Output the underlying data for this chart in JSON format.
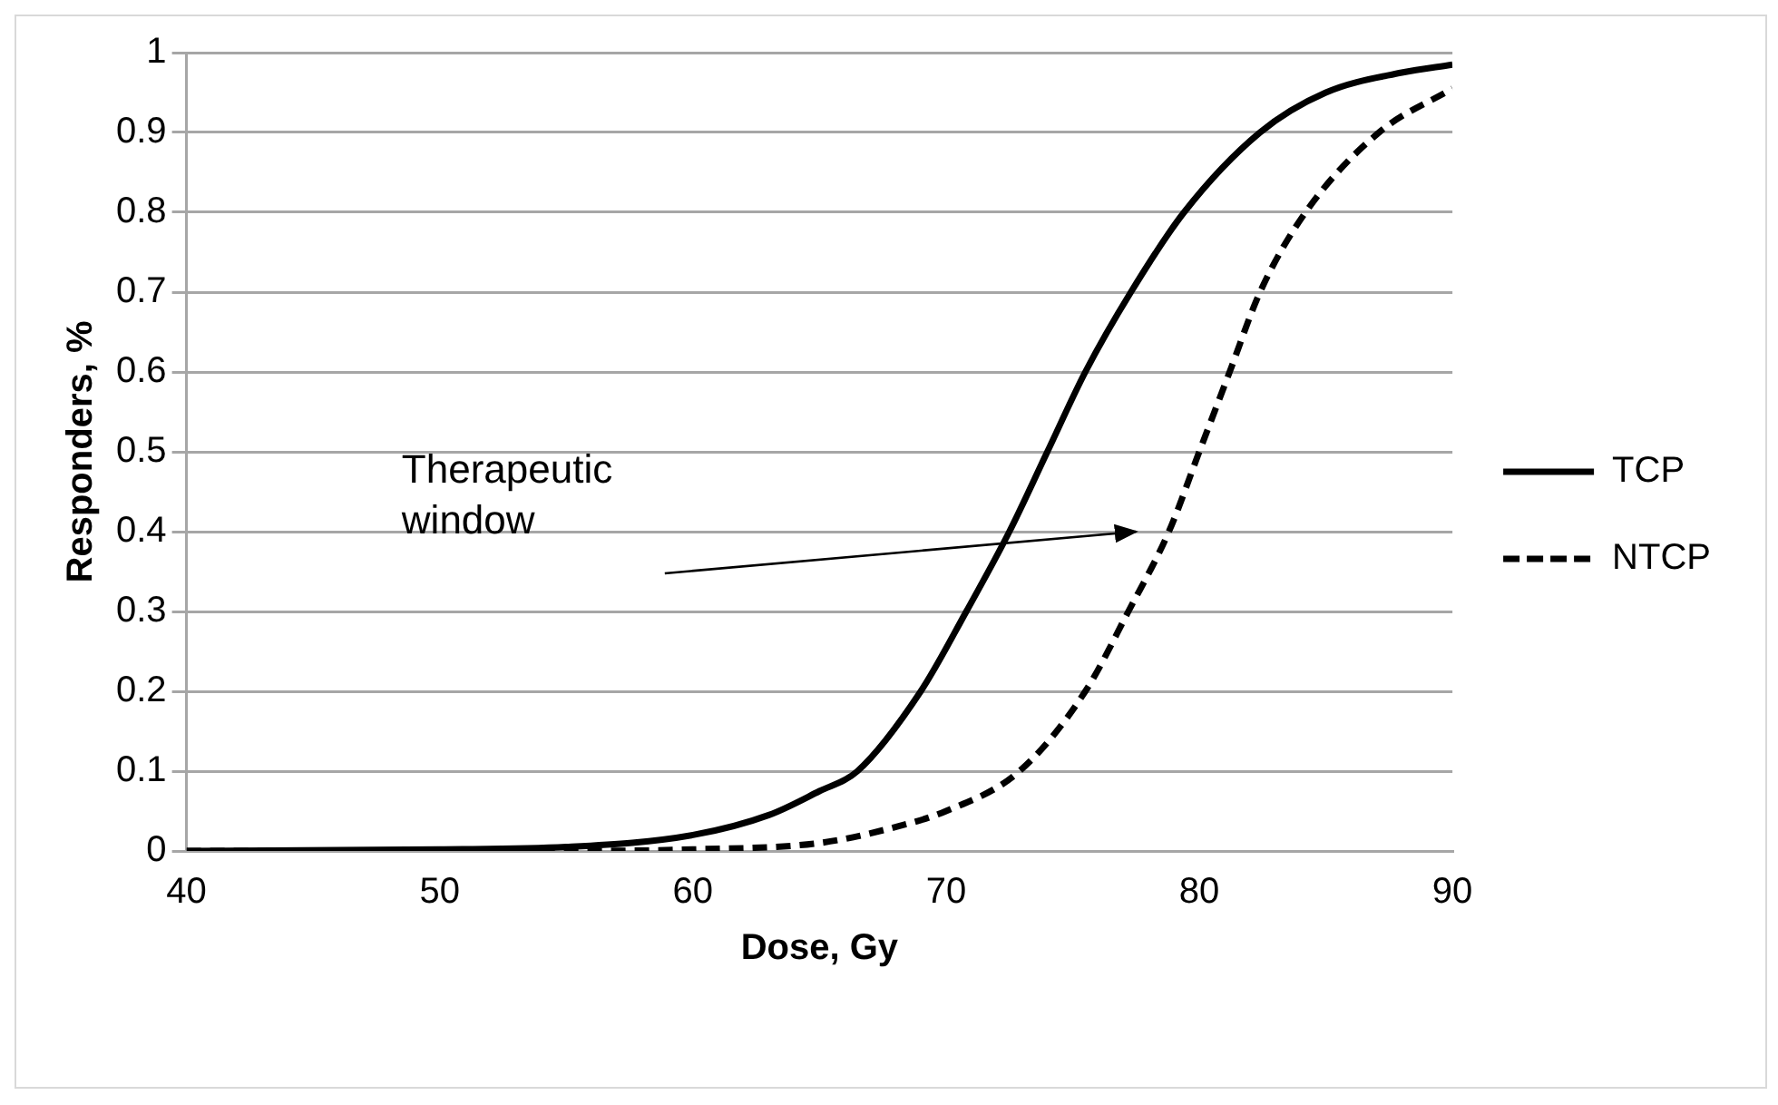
{
  "chart_data": {
    "type": "line",
    "xlabel": "Dose, Gy",
    "ylabel": "Responders, %",
    "series": [
      {
        "name": "TCP",
        "color": "#000000",
        "line_style": "solid",
        "x": [
          40,
          50,
          55,
          60,
          63,
          65,
          66.5,
          69,
          70.8,
          72.5,
          74,
          75.5,
          77.3,
          79.4,
          82.4,
          85,
          88,
          90
        ],
        "values": [
          0,
          0.002,
          0.005,
          0.02,
          0.045,
          0.075,
          0.1,
          0.2,
          0.3,
          0.4,
          0.5,
          0.6,
          0.7,
          0.8,
          0.9,
          0.95,
          0.975,
          0.985
        ]
      },
      {
        "name": "NTCP",
        "color": "#000000",
        "line_style": "dashed",
        "x": [
          40,
          55,
          60,
          65,
          68,
          70,
          72.9,
          75.5,
          77.2,
          78.8,
          80,
          81.2,
          82.4,
          84.2,
          87.1,
          90
        ],
        "values": [
          0,
          0,
          0.002,
          0.01,
          0.03,
          0.05,
          0.1,
          0.2,
          0.3,
          0.4,
          0.5,
          0.6,
          0.7,
          0.8,
          0.9,
          0.955
        ]
      }
    ],
    "xlim": [
      40,
      90
    ],
    "xticks": [
      40,
      50,
      60,
      70,
      80,
      90
    ],
    "ylim": [
      0,
      1
    ],
    "yticks": [
      0,
      0.1,
      0.2,
      0.3,
      0.4,
      0.5,
      0.6,
      0.7,
      0.8,
      0.9,
      1
    ],
    "grid": "y",
    "legend": "right",
    "marker": "none",
    "annotations": [
      "Therapeutic window"
    ]
  }
}
